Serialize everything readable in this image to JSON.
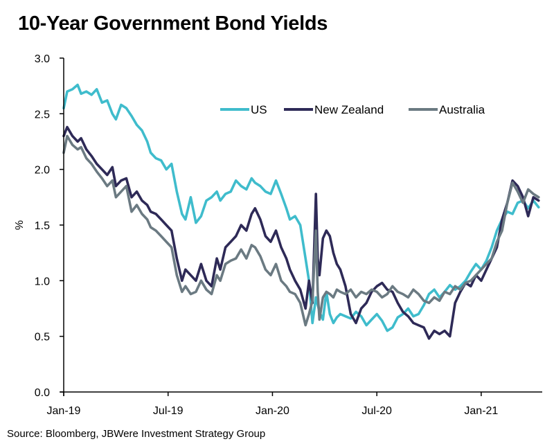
{
  "chart_data": {
    "type": "line",
    "title": "10-Year Government Bond Yields",
    "xlabel": "",
    "ylabel": "%",
    "ylim": [
      0,
      3.0
    ],
    "xlim_months_since_jan19": [
      0,
      27.5
    ],
    "yticks": [
      0.0,
      0.5,
      1.0,
      1.5,
      2.0,
      2.5,
      3.0
    ],
    "ytick_labels": [
      "0.0",
      "0.5",
      "1.0",
      "1.5",
      "2.0",
      "2.5",
      "3.0"
    ],
    "xticks_months": [
      0,
      6,
      12,
      18,
      24
    ],
    "xtick_labels": [
      "Jan-19",
      "Jul-19",
      "Jan-20",
      "Jul-20",
      "Jan-21"
    ],
    "grid": false,
    "legend_position": "top-right",
    "x_unit": "months since Jan-2019",
    "series": [
      {
        "name": "US",
        "color": "#3fbccc",
        "x": [
          0,
          0.2,
          0.5,
          0.8,
          1.0,
          1.3,
          1.6,
          1.9,
          2.2,
          2.5,
          2.8,
          3.0,
          3.3,
          3.6,
          3.9,
          4.2,
          4.5,
          4.8,
          5.0,
          5.3,
          5.6,
          5.9,
          6.2,
          6.5,
          6.8,
          7.0,
          7.3,
          7.6,
          7.9,
          8.2,
          8.5,
          8.8,
          9.0,
          9.3,
          9.6,
          9.9,
          10.2,
          10.5,
          10.8,
          11.0,
          11.3,
          11.6,
          11.9,
          12.2,
          12.5,
          12.8,
          13.0,
          13.3,
          13.6,
          13.9,
          14.1,
          14.3,
          14.5,
          14.7,
          14.9,
          15.1,
          15.3,
          15.5,
          15.7,
          15.9,
          16.2,
          16.5,
          16.8,
          17.1,
          17.4,
          17.7,
          18.0,
          18.3,
          18.6,
          18.9,
          19.2,
          19.5,
          19.8,
          20.1,
          20.4,
          20.7,
          21.0,
          21.3,
          21.6,
          21.9,
          22.2,
          22.5,
          22.8,
          23.1,
          23.4,
          23.7,
          24.0,
          24.3,
          24.6,
          24.9,
          25.2,
          25.5,
          25.8,
          26.1,
          26.4,
          26.7,
          27.0,
          27.3
        ],
        "values": [
          2.55,
          2.7,
          2.72,
          2.76,
          2.68,
          2.7,
          2.67,
          2.72,
          2.6,
          2.62,
          2.5,
          2.45,
          2.58,
          2.55,
          2.48,
          2.4,
          2.35,
          2.25,
          2.15,
          2.1,
          2.08,
          2.0,
          2.05,
          1.8,
          1.6,
          1.55,
          1.75,
          1.52,
          1.58,
          1.72,
          1.75,
          1.8,
          1.72,
          1.78,
          1.8,
          1.9,
          1.85,
          1.82,
          1.92,
          1.88,
          1.85,
          1.8,
          1.78,
          1.9,
          1.78,
          1.65,
          1.55,
          1.58,
          1.5,
          1.2,
          1.0,
          0.62,
          0.85,
          0.72,
          0.65,
          0.9,
          0.7,
          0.62,
          0.67,
          0.7,
          0.68,
          0.66,
          0.72,
          0.68,
          0.6,
          0.65,
          0.7,
          0.64,
          0.55,
          0.58,
          0.67,
          0.7,
          0.75,
          0.68,
          0.7,
          0.78,
          0.88,
          0.92,
          0.85,
          0.9,
          0.96,
          0.92,
          0.95,
          1.0,
          1.08,
          1.15,
          1.1,
          1.18,
          1.3,
          1.45,
          1.55,
          1.62,
          1.6,
          1.7,
          1.72,
          1.65,
          1.72,
          1.66
        ]
      },
      {
        "name": "New Zealand",
        "color": "#2e2a57",
        "x": [
          0,
          0.2,
          0.5,
          0.8,
          1.0,
          1.3,
          1.6,
          1.9,
          2.2,
          2.5,
          2.8,
          3.0,
          3.3,
          3.6,
          3.9,
          4.2,
          4.5,
          4.8,
          5.0,
          5.3,
          5.6,
          5.9,
          6.2,
          6.5,
          6.8,
          7.0,
          7.3,
          7.6,
          7.9,
          8.2,
          8.5,
          8.8,
          9.0,
          9.3,
          9.6,
          9.9,
          10.2,
          10.5,
          10.8,
          11.0,
          11.3,
          11.6,
          11.9,
          12.2,
          12.5,
          12.8,
          13.0,
          13.3,
          13.6,
          13.9,
          14.1,
          14.3,
          14.5,
          14.6,
          14.7,
          14.9,
          15.1,
          15.3,
          15.5,
          15.7,
          15.9,
          16.2,
          16.5,
          16.8,
          17.1,
          17.4,
          17.7,
          18.0,
          18.3,
          18.6,
          18.9,
          19.2,
          19.5,
          19.8,
          20.1,
          20.4,
          20.7,
          21.0,
          21.3,
          21.6,
          21.9,
          22.2,
          22.5,
          22.8,
          23.1,
          23.4,
          23.7,
          24.0,
          24.3,
          24.6,
          24.9,
          25.2,
          25.5,
          25.8,
          26.1,
          26.4,
          26.7,
          27.0,
          27.3
        ],
        "values": [
          2.3,
          2.38,
          2.3,
          2.25,
          2.28,
          2.18,
          2.12,
          2.05,
          2.0,
          1.95,
          2.02,
          1.85,
          1.9,
          1.92,
          1.75,
          1.8,
          1.72,
          1.68,
          1.62,
          1.6,
          1.55,
          1.5,
          1.45,
          1.2,
          1.0,
          1.1,
          1.05,
          1.0,
          1.15,
          1.0,
          0.95,
          1.2,
          1.1,
          1.3,
          1.35,
          1.4,
          1.5,
          1.45,
          1.6,
          1.65,
          1.55,
          1.4,
          1.35,
          1.45,
          1.3,
          1.2,
          1.1,
          1.0,
          0.92,
          0.75,
          1.0,
          0.8,
          1.78,
          1.2,
          1.05,
          1.38,
          1.45,
          1.4,
          1.25,
          1.15,
          1.1,
          0.95,
          0.7,
          0.62,
          0.75,
          0.8,
          0.9,
          0.95,
          0.98,
          0.92,
          0.9,
          0.8,
          0.72,
          0.68,
          0.62,
          0.6,
          0.58,
          0.48,
          0.55,
          0.52,
          0.55,
          0.5,
          0.8,
          0.9,
          0.98,
          0.95,
          1.05,
          1.0,
          1.1,
          1.2,
          1.3,
          1.55,
          1.7,
          1.9,
          1.85,
          1.75,
          1.58,
          1.75,
          1.72
        ]
      },
      {
        "name": "Australia",
        "color": "#6b7a82",
        "x": [
          0,
          0.2,
          0.5,
          0.8,
          1.0,
          1.3,
          1.6,
          1.9,
          2.2,
          2.5,
          2.8,
          3.0,
          3.3,
          3.6,
          3.9,
          4.2,
          4.5,
          4.8,
          5.0,
          5.3,
          5.6,
          5.9,
          6.2,
          6.5,
          6.8,
          7.0,
          7.3,
          7.6,
          7.9,
          8.2,
          8.5,
          8.8,
          9.0,
          9.3,
          9.6,
          9.9,
          10.2,
          10.5,
          10.8,
          11.0,
          11.3,
          11.6,
          11.9,
          12.2,
          12.5,
          12.8,
          13.0,
          13.3,
          13.6,
          13.9,
          14.1,
          14.3,
          14.5,
          14.6,
          14.7,
          14.9,
          15.1,
          15.3,
          15.5,
          15.7,
          15.9,
          16.2,
          16.5,
          16.8,
          17.1,
          17.4,
          17.7,
          18.0,
          18.3,
          18.6,
          18.9,
          19.2,
          19.5,
          19.8,
          20.1,
          20.4,
          20.7,
          21.0,
          21.3,
          21.6,
          21.9,
          22.2,
          22.5,
          22.8,
          23.1,
          23.4,
          23.7,
          24.0,
          24.3,
          24.6,
          24.9,
          25.2,
          25.5,
          25.8,
          26.1,
          26.4,
          26.7,
          27.0,
          27.3
        ],
        "values": [
          2.15,
          2.3,
          2.22,
          2.18,
          2.2,
          2.1,
          2.05,
          1.98,
          1.92,
          1.85,
          1.9,
          1.75,
          1.8,
          1.85,
          1.62,
          1.68,
          1.6,
          1.55,
          1.48,
          1.45,
          1.4,
          1.35,
          1.3,
          1.05,
          0.9,
          0.95,
          0.88,
          0.9,
          1.0,
          0.92,
          0.88,
          1.05,
          1.0,
          1.15,
          1.18,
          1.2,
          1.28,
          1.2,
          1.32,
          1.3,
          1.22,
          1.1,
          1.05,
          1.15,
          1.0,
          0.95,
          0.9,
          0.88,
          0.8,
          0.6,
          0.7,
          0.82,
          1.45,
          0.9,
          0.65,
          0.85,
          0.9,
          0.88,
          0.85,
          0.92,
          0.9,
          0.88,
          0.92,
          0.85,
          0.9,
          0.88,
          0.92,
          0.9,
          0.85,
          0.88,
          0.95,
          0.9,
          0.88,
          0.85,
          0.92,
          0.88,
          0.82,
          0.8,
          0.85,
          0.82,
          0.9,
          0.88,
          0.95,
          0.92,
          0.98,
          1.0,
          1.05,
          1.1,
          1.15,
          1.2,
          1.35,
          1.45,
          1.7,
          1.88,
          1.8,
          1.7,
          1.82,
          1.78,
          1.75
        ]
      }
    ]
  },
  "header": {
    "title": "10-Year Government Bond Yields"
  },
  "footer": {
    "source": "Source: Bloomberg, JBWere Investment Strategy Group"
  }
}
